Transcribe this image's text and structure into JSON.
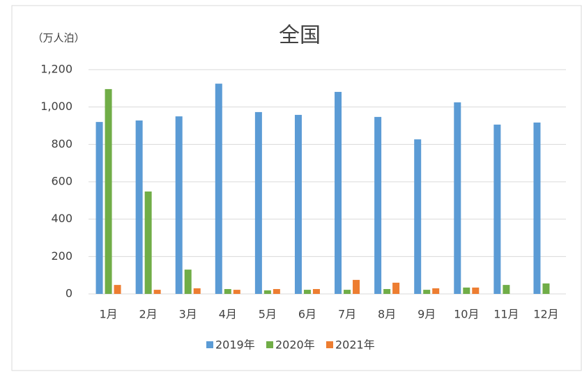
{
  "chart_data": {
    "type": "bar",
    "title": "全国",
    "y_unit_label": "（万人泊）",
    "categories": [
      "1月",
      "2月",
      "3月",
      "4月",
      "5月",
      "6月",
      "7月",
      "8月",
      "9月",
      "10月",
      "11月",
      "12月"
    ],
    "series": [
      {
        "name": "2019年",
        "color": "#5b9bd5",
        "values": [
          920,
          928,
          950,
          1125,
          973,
          958,
          1081,
          947,
          827,
          1025,
          906,
          917
        ]
      },
      {
        "name": "2020年",
        "color": "#70ad47",
        "values": [
          1096,
          548,
          130,
          26,
          19,
          22,
          22,
          26,
          22,
          34,
          48,
          56
        ]
      },
      {
        "name": "2021年",
        "color": "#ed7d31",
        "values": [
          48,
          22,
          30,
          22,
          26,
          26,
          75,
          60,
          30,
          34,
          null,
          null
        ]
      }
    ],
    "ylim": [
      0,
      1200
    ],
    "yticks": [
      0,
      200,
      400,
      600,
      800,
      {
        "value": 1000,
        "label": "1,000"
      },
      {
        "value": 1200,
        "label": "1,200"
      }
    ],
    "grid": true,
    "legend": "bottom"
  }
}
